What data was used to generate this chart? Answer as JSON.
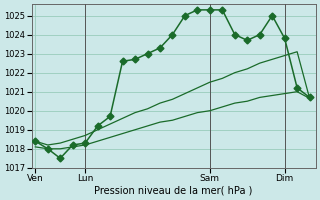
{
  "background_color": "#cce8e8",
  "grid_color": "#99ccbb",
  "line_color": "#1a6b2a",
  "title": "Pression niveau de la mer( hPa )",
  "xlabel_day_labels": [
    "Ven",
    "Lun",
    "Sam",
    "Dim"
  ],
  "xlabel_day_positions": [
    0,
    4,
    14,
    20
  ],
  "ylim": [
    1017.0,
    1025.6
  ],
  "yticks": [
    1017,
    1018,
    1019,
    1020,
    1021,
    1022,
    1023,
    1024,
    1025
  ],
  "series1_x": [
    0,
    1,
    2,
    3,
    4,
    5,
    6,
    7,
    8,
    9,
    10,
    11,
    12,
    13,
    14,
    15,
    16,
    17,
    18,
    19,
    20,
    21,
    22
  ],
  "series1_y": [
    1018.4,
    1018.0,
    1017.5,
    1018.2,
    1018.3,
    1019.2,
    1019.7,
    1022.6,
    1022.7,
    1023.0,
    1023.3,
    1024.0,
    1025.0,
    1025.3,
    1025.3,
    1025.3,
    1024.0,
    1023.7,
    1024.0,
    1025.0,
    1023.8,
    1021.2,
    1020.7
  ],
  "series2_x": [
    0,
    1,
    2,
    3,
    4,
    5,
    6,
    7,
    8,
    9,
    10,
    11,
    12,
    13,
    14,
    15,
    16,
    17,
    18,
    19,
    20,
    21,
    22
  ],
  "series2_y": [
    1018.4,
    1018.2,
    1018.3,
    1018.5,
    1018.7,
    1019.0,
    1019.3,
    1019.6,
    1019.9,
    1020.1,
    1020.4,
    1020.6,
    1020.9,
    1021.2,
    1021.5,
    1021.7,
    1022.0,
    1022.2,
    1022.5,
    1022.7,
    1022.9,
    1023.1,
    1020.65
  ],
  "series3_x": [
    0,
    1,
    2,
    3,
    4,
    5,
    6,
    7,
    8,
    9,
    10,
    11,
    12,
    13,
    14,
    15,
    16,
    17,
    18,
    19,
    20,
    21,
    22
  ],
  "series3_y": [
    1018.1,
    1018.0,
    1018.0,
    1018.1,
    1018.2,
    1018.4,
    1018.6,
    1018.8,
    1019.0,
    1019.2,
    1019.4,
    1019.5,
    1019.7,
    1019.9,
    1020.0,
    1020.2,
    1020.4,
    1020.5,
    1020.7,
    1020.8,
    1020.9,
    1021.0,
    1020.65
  ],
  "vline_positions": [
    4,
    14,
    20
  ],
  "markersize": 3.5
}
